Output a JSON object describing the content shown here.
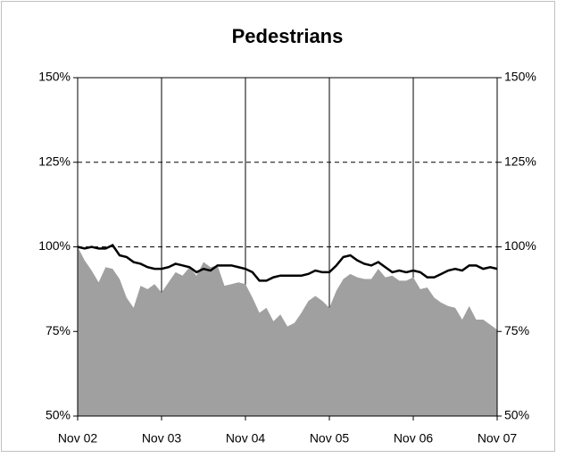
{
  "chart_data": {
    "type": "line",
    "title": "Pedestrians",
    "categories": [
      "Nov 02",
      null,
      null,
      null,
      null,
      null,
      null,
      null,
      null,
      null,
      null,
      null,
      "Nov 03",
      null,
      null,
      null,
      null,
      null,
      null,
      null,
      null,
      null,
      null,
      null,
      "Nov 04",
      null,
      null,
      null,
      null,
      null,
      null,
      null,
      null,
      null,
      null,
      null,
      "Nov 05",
      null,
      null,
      null,
      null,
      null,
      null,
      null,
      null,
      null,
      null,
      null,
      "Nov 06",
      null,
      null,
      null,
      null,
      null,
      null,
      null,
      null,
      null,
      null,
      null,
      "Nov 07"
    ],
    "series": [
      {
        "type": "area",
        "color": "#a0a0a0",
        "values": [
          100,
          96,
          93,
          89.5,
          94,
          93.5,
          90.5,
          85,
          82,
          88.5,
          87.5,
          89,
          86.5,
          89.5,
          92.5,
          91.5,
          94,
          91.5,
          95.5,
          94,
          94.5,
          88.5,
          89,
          89.5,
          89,
          85,
          80.5,
          82,
          78,
          80,
          76.5,
          77.5,
          80.5,
          84,
          85.5,
          84,
          82,
          87,
          90.5,
          92,
          91,
          90.5,
          90.5,
          93.5,
          91,
          91.5,
          90,
          90,
          91,
          87.5,
          88,
          85,
          83.5,
          82.5,
          82,
          78.5,
          82.5,
          78.5,
          78.5,
          77,
          75.5
        ]
      },
      {
        "type": "line",
        "color": "#000000",
        "values": [
          100,
          99.5,
          100,
          99.5,
          99.5,
          100.5,
          97.5,
          97,
          95.5,
          95,
          94,
          93.5,
          93.5,
          94,
          95,
          94.5,
          94,
          92.5,
          93.5,
          93,
          94.5,
          94.5,
          94.5,
          94,
          93.5,
          92.5,
          90,
          90,
          91,
          91.5,
          91.5,
          91.5,
          91.5,
          92,
          93,
          92.5,
          92.5,
          94.5,
          97,
          97.5,
          96,
          95,
          94.5,
          95.5,
          94,
          92.5,
          93,
          92.5,
          93,
          92.5,
          91,
          91,
          92,
          93,
          93.5,
          93,
          94.5,
          94.5,
          93.5,
          94,
          93.5
        ]
      }
    ],
    "ylim": [
      50,
      150
    ],
    "yticks": [
      {
        "value": 50,
        "label": "50%"
      },
      {
        "value": 75,
        "label": "75%"
      },
      {
        "value": 100,
        "label": "100%"
      },
      {
        "value": 125,
        "label": "125%"
      },
      {
        "value": 150,
        "label": "150%"
      }
    ],
    "grid": true
  }
}
